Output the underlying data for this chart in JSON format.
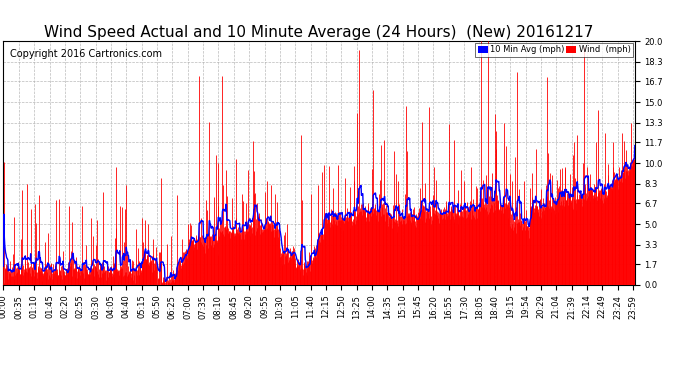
{
  "title": "Wind Speed Actual and 10 Minute Average (24 Hours)  (New) 20161217",
  "copyright": "Copyright 2016 Cartronics.com",
  "legend_blue": "10 Min Avg (mph)",
  "legend_red": "Wind  (mph)",
  "yticks": [
    0.0,
    1.7,
    3.3,
    5.0,
    6.7,
    8.3,
    10.0,
    11.7,
    13.3,
    15.0,
    16.7,
    18.3,
    20.0
  ],
  "ylim": [
    0.0,
    20.0
  ],
  "xtick_labels": [
    "00:00",
    "00:35",
    "01:10",
    "01:45",
    "02:20",
    "02:55",
    "03:30",
    "04:05",
    "04:40",
    "05:15",
    "05:50",
    "06:25",
    "07:00",
    "07:35",
    "08:10",
    "08:45",
    "09:20",
    "09:55",
    "10:30",
    "11:05",
    "11:40",
    "12:15",
    "12:50",
    "13:25",
    "14:00",
    "14:35",
    "15:10",
    "15:45",
    "16:20",
    "16:55",
    "17:30",
    "18:05",
    "18:40",
    "19:15",
    "19:54",
    "20:29",
    "21:04",
    "21:39",
    "22:14",
    "22:49",
    "23:24",
    "23:59"
  ],
  "bg_color": "#ffffff",
  "plot_bg_color": "#ffffff",
  "grid_color": "#aaaaaa",
  "title_fontsize": 11,
  "copyright_fontsize": 7,
  "tick_fontsize": 6,
  "red_color": "#ff0000",
  "blue_color": "#0000ff",
  "black_color": "#000000",
  "seed": 42
}
